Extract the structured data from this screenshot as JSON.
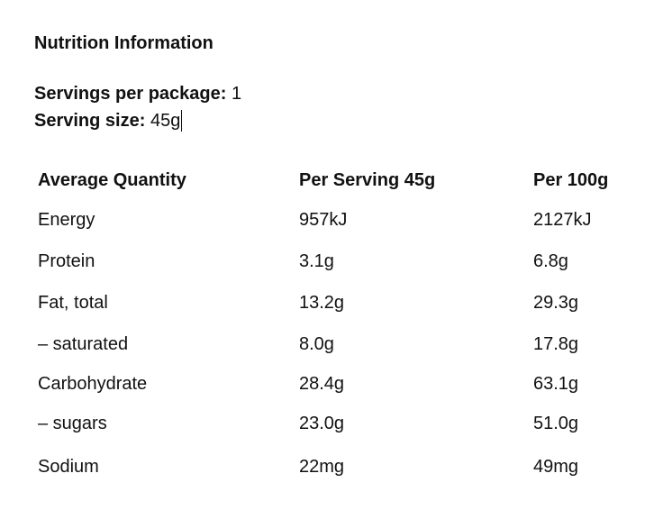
{
  "title": "Nutrition Information",
  "servings_per_package": {
    "label": "Servings per package:",
    "value": "1"
  },
  "serving_size": {
    "label": "Serving size:",
    "value": "45g"
  },
  "table": {
    "header": [
      "Average Quantity",
      "Per Serving 45g",
      "Per 100g"
    ],
    "rows": [
      [
        "Energy",
        "957kJ",
        "2127kJ"
      ],
      [
        "Protein",
        "3.1g",
        "6.8g"
      ],
      [
        "Fat, total",
        "13.2g",
        "29.3g"
      ],
      [
        "– saturated",
        "8.0g",
        "17.8g"
      ],
      [
        "Carbohydrate",
        "28.4g",
        "63.1g"
      ],
      [
        "– sugars",
        "23.0g",
        "51.0g"
      ],
      [
        "Sodium",
        "22mg",
        "49mg"
      ]
    ]
  }
}
